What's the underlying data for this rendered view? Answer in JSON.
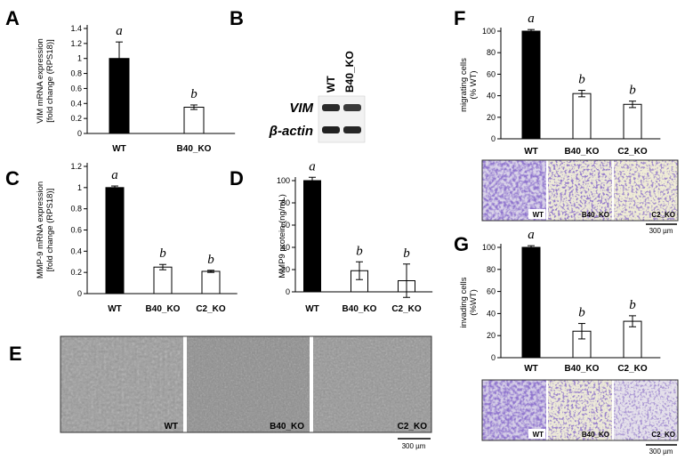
{
  "panel_letters": {
    "A": "A",
    "B": "B",
    "C": "C",
    "D": "D",
    "E": "E",
    "F": "F",
    "G": "G"
  },
  "chart_data": [
    {
      "id": "A",
      "type": "bar",
      "categories": [
        "WT",
        "B40_KO"
      ],
      "values": [
        1.0,
        0.35
      ],
      "errors": [
        0.22,
        0.03
      ],
      "significance": [
        "a",
        "b"
      ],
      "ylim": [
        0,
        1.4
      ],
      "yticks": [
        0,
        0.2,
        0.4,
        0.6,
        0.8,
        1,
        1.2,
        1.4
      ],
      "ylabel_main": "VIM mRNA expression",
      "ylabel_sub": "[fold change (RPS18)]",
      "bar_colors": [
        "#000000",
        "#ffffff"
      ],
      "grid": false
    },
    {
      "id": "C",
      "type": "bar",
      "categories": [
        "WT",
        "B40_KO",
        "C2_KO"
      ],
      "values": [
        1.0,
        0.25,
        0.21
      ],
      "errors": [
        0.015,
        0.025,
        0.01
      ],
      "significance": [
        "a",
        "b",
        "b"
      ],
      "ylim": [
        0,
        1.2
      ],
      "yticks": [
        0,
        0.2,
        0.4,
        0.6,
        0.8,
        1,
        1.2
      ],
      "ylabel_main": "MMP-9 mRNA expression",
      "ylabel_sub": "[fold change (RPS18)]",
      "bar_colors": [
        "#000000",
        "#ffffff",
        "#ffffff"
      ],
      "grid": false
    },
    {
      "id": "D",
      "type": "bar",
      "categories": [
        "WT",
        "B40_KO",
        "C2_KO"
      ],
      "values": [
        100,
        19,
        10
      ],
      "errors": [
        3,
        8,
        15
      ],
      "significance": [
        "a",
        "b",
        "b"
      ],
      "ylim": [
        0,
        100
      ],
      "yticks": [
        0,
        20,
        40,
        60,
        80,
        100
      ],
      "ylabel_main": "MMP9 protein (ng/mL)",
      "ylabel_sub": "",
      "bar_colors": [
        "#000000",
        "#ffffff",
        "#ffffff"
      ],
      "grid": false
    },
    {
      "id": "F",
      "type": "bar",
      "categories": [
        "WT",
        "B40_KO",
        "C2_KO"
      ],
      "values": [
        100,
        42,
        32
      ],
      "errors": [
        1.5,
        3,
        3
      ],
      "significance": [
        "a",
        "b",
        "b"
      ],
      "ylim": [
        0,
        100
      ],
      "yticks": [
        0,
        20,
        40,
        60,
        80,
        100
      ],
      "ylabel_main": "migrating cells",
      "ylabel_sub": "(% WT)",
      "bar_colors": [
        "#000000",
        "#ffffff",
        "#ffffff"
      ],
      "grid": false
    },
    {
      "id": "G",
      "type": "bar",
      "categories": [
        "WT",
        "B40_KO",
        "C2_KO"
      ],
      "values": [
        100,
        24,
        33
      ],
      "errors": [
        1.5,
        7,
        5
      ],
      "significance": [
        "a",
        "b",
        "b"
      ],
      "ylim": [
        0,
        100
      ],
      "yticks": [
        0,
        20,
        40,
        60,
        80,
        100
      ],
      "ylabel_main": "invading cells",
      "ylabel_sub": "(%WT)",
      "bar_colors": [
        "#000000",
        "#ffffff",
        "#ffffff"
      ],
      "grid": false
    }
  ],
  "blot": {
    "columns": [
      "WT",
      "B40_KO"
    ],
    "rows": [
      "VIM",
      "β-actin"
    ]
  },
  "micrographs": {
    "E": {
      "labels": [
        "WT",
        "B40_KO",
        "C2_KO"
      ],
      "scale": "300 µm"
    },
    "F": {
      "labels": [
        "WT",
        "B40_KO",
        "C2_KO"
      ],
      "scale": "300 µm"
    },
    "G": {
      "labels": [
        "WT",
        "B40_KO",
        "C2_KO"
      ],
      "scale": "300 µm"
    }
  }
}
